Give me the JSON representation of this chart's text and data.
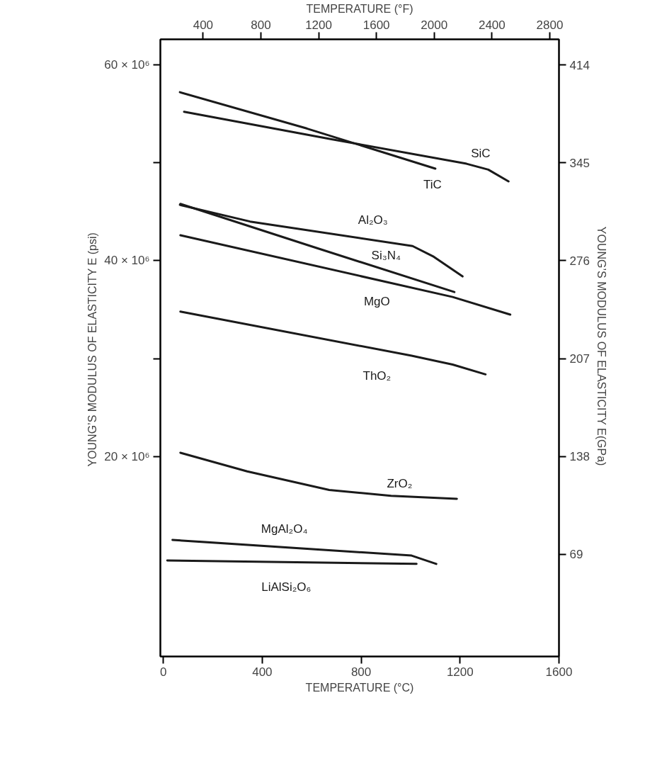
{
  "chart_data": {
    "type": "line",
    "xlabel": "TEMPERATURE (°C)",
    "x2label": "TEMPERATURE (°F)",
    "ylabel": "YOUNG’S MODULUS OF ELASTICITY  E (psi)",
    "y2label": "YOUNG’S MODULUS OF ELASTICITY  E(GPa)",
    "xlim": [
      -12,
      1600
    ],
    "xticks": [
      0,
      400,
      800,
      1200,
      1600
    ],
    "x2lim": [
      104,
      2864
    ],
    "x2ticks": [
      400,
      800,
      1200,
      1600,
      2000,
      2400,
      2800
    ],
    "ylim": [
      -400000,
      62600000
    ],
    "yticks": [
      {
        "value": 60000000,
        "label": "60 × 10⁶"
      },
      {
        "value": 50000000,
        "label": null
      },
      {
        "value": 40000000,
        "label": "40 × 10⁶"
      },
      {
        "value": 30000000,
        "label": null
      },
      {
        "value": 20000000,
        "label": "20 × 10⁶"
      }
    ],
    "y2lim": [
      -3,
      432
    ],
    "y2ticks": [
      414,
      345,
      276,
      207,
      138,
      69
    ],
    "grid": false,
    "legend": false,
    "marker": "none",
    "line_style": "solid",
    "series": [
      {
        "name": "SiC",
        "color": "#1a1a1a",
        "x": [
          84,
          680,
          1226,
          1314,
          1396
        ],
        "values": [
          55200000,
          52400000,
          49900000,
          49300000,
          48100000
        ]
      },
      {
        "name": "TiC",
        "color": "#1a1a1a",
        "x": [
          67,
          580,
          1100
        ],
        "values": [
          57200000,
          53500000,
          49400000
        ]
      },
      {
        "name": "Al₂O₃",
        "color": "#1a1a1a",
        "x": [
          67,
          351,
          1008,
          1094,
          1210
        ],
        "values": [
          45700000,
          44000000,
          41500000,
          40400000,
          38400000
        ]
      },
      {
        "name": "Si₃N₄",
        "color": "#1a1a1a",
        "x": [
          69,
          620,
          1177
        ],
        "values": [
          45800000,
          41300000,
          36800000
        ]
      },
      {
        "name": "MgO",
        "color": "#1a1a1a",
        "x": [
          69,
          1170,
          1403
        ],
        "values": [
          42600000,
          36300000,
          34500000
        ]
      },
      {
        "name": "ThO₂",
        "color": "#1a1a1a",
        "x": [
          69,
          1004,
          1170,
          1303
        ],
        "values": [
          34800000,
          30300000,
          29400000,
          28400000
        ]
      },
      {
        "name": "ZrO₂",
        "color": "#1a1a1a",
        "x": [
          69,
          339,
          671,
          921,
          1187
        ],
        "values": [
          20400000,
          18500000,
          16600000,
          16000000,
          15700000
        ]
      },
      {
        "name": "MgAl₂O₄",
        "color": "#1a1a1a",
        "x": [
          37,
          1004,
          1104
        ],
        "values": [
          11500000,
          9900000,
          9050000
        ]
      },
      {
        "name": "LiAlSi₂O₆",
        "color": "#1a1a1a",
        "x": [
          16,
          1024
        ],
        "values": [
          9400000,
          9050000
        ]
      }
    ]
  }
}
